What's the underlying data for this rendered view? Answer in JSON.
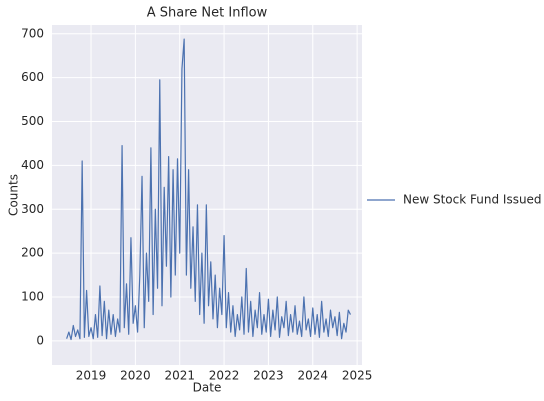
{
  "chart_data": {
    "type": "line",
    "title": "A Share Net Inflow",
    "xlabel": "Date",
    "ylabel": "Counts",
    "x": [
      2018.45,
      2018.5,
      2018.55,
      2018.6,
      2018.65,
      2018.7,
      2018.75,
      2018.8,
      2018.85,
      2018.9,
      2018.95,
      2019.0,
      2019.05,
      2019.1,
      2019.15,
      2019.2,
      2019.25,
      2019.3,
      2019.35,
      2019.4,
      2019.45,
      2019.5,
      2019.55,
      2019.6,
      2019.65,
      2019.7,
      2019.75,
      2019.8,
      2019.85,
      2019.9,
      2019.95,
      2020.0,
      2020.05,
      2020.1,
      2020.15,
      2020.2,
      2020.25,
      2020.3,
      2020.35,
      2020.4,
      2020.45,
      2020.5,
      2020.55,
      2020.6,
      2020.65,
      2020.7,
      2020.75,
      2020.8,
      2020.85,
      2020.9,
      2020.95,
      2021.0,
      2021.05,
      2021.1,
      2021.15,
      2021.2,
      2021.25,
      2021.3,
      2021.35,
      2021.4,
      2021.45,
      2021.5,
      2021.55,
      2021.6,
      2021.65,
      2021.7,
      2021.75,
      2021.8,
      2021.85,
      2021.9,
      2021.95,
      2022.0,
      2022.05,
      2022.1,
      2022.15,
      2022.2,
      2022.25,
      2022.3,
      2022.35,
      2022.4,
      2022.45,
      2022.5,
      2022.55,
      2022.6,
      2022.65,
      2022.7,
      2022.75,
      2022.8,
      2022.85,
      2022.9,
      2022.95,
      2023.0,
      2023.05,
      2023.1,
      2023.15,
      2023.2,
      2023.25,
      2023.3,
      2023.35,
      2023.4,
      2023.45,
      2023.5,
      2023.55,
      2023.6,
      2023.65,
      2023.7,
      2023.75,
      2023.8,
      2023.85,
      2023.9,
      2023.95,
      2024.0,
      2024.05,
      2024.1,
      2024.15,
      2024.2,
      2024.25,
      2024.3,
      2024.35,
      2024.4,
      2024.45,
      2024.5,
      2024.55,
      2024.6,
      2024.65,
      2024.7,
      2024.75,
      2024.8,
      2024.85
    ],
    "series": [
      {
        "name": "New Stock Fund Issued",
        "color": "#4c72b0",
        "values": [
          5,
          20,
          3,
          35,
          10,
          25,
          5,
          410,
          8,
          115,
          10,
          30,
          5,
          60,
          8,
          125,
          12,
          90,
          5,
          70,
          15,
          60,
          10,
          50,
          20,
          445,
          30,
          130,
          15,
          235,
          40,
          80,
          20,
          150,
          375,
          30,
          200,
          90,
          440,
          60,
          300,
          120,
          595,
          80,
          350,
          170,
          420,
          100,
          390,
          150,
          415,
          200,
          620,
          688,
          150,
          390,
          120,
          260,
          90,
          310,
          60,
          200,
          40,
          310,
          80,
          180,
          50,
          150,
          30,
          120,
          60,
          240,
          30,
          110,
          20,
          80,
          10,
          60,
          25,
          100,
          15,
          165,
          20,
          90,
          10,
          70,
          30,
          110,
          15,
          60,
          20,
          95,
          10,
          70,
          25,
          100,
          8,
          55,
          30,
          90,
          12,
          60,
          20,
          80,
          15,
          45,
          10,
          100,
          25,
          50,
          10,
          75,
          15,
          60,
          8,
          90,
          20,
          50,
          10,
          70,
          30,
          55,
          12,
          65,
          5,
          40,
          20,
          70,
          60
        ]
      }
    ],
    "xlim": [
      2018.12,
      2025.11
    ],
    "xticks": [
      2019,
      2020,
      2021,
      2022,
      2023,
      2024,
      2025
    ],
    "ylim": [
      -55,
      720
    ],
    "yticks": [
      0,
      100,
      200,
      300,
      400,
      500,
      600,
      700
    ],
    "grid": true,
    "legend": "outside right"
  }
}
